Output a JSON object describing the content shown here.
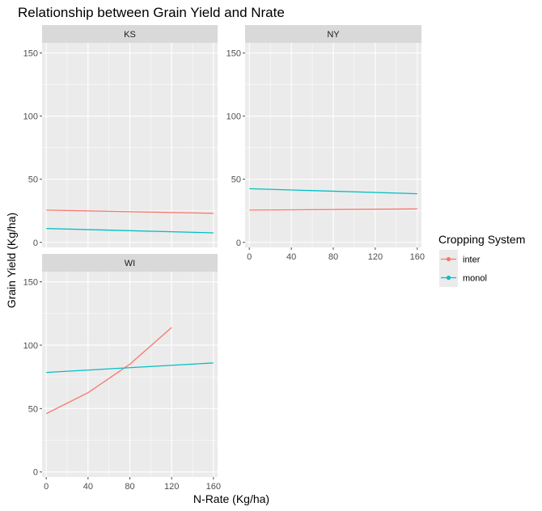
{
  "chart_data": {
    "type": "line",
    "title": "Relationship between Grain Yield and Nrate",
    "xlabel": "N-Rate (Kg/ha)",
    "ylabel": "Grain Yield (Kg/ha)",
    "xlim": [
      -4,
      164
    ],
    "ylim": [
      -4,
      158
    ],
    "x_ticks": [
      0,
      40,
      80,
      120,
      160
    ],
    "y_ticks": [
      0,
      50,
      100,
      150
    ],
    "grid": true,
    "legend": {
      "title": "Cropping System",
      "position": "right",
      "entries": [
        {
          "name": "inter",
          "color": "#F8766D"
        },
        {
          "name": "monol",
          "color": "#00BFC4"
        }
      ]
    },
    "panels": [
      {
        "label": "KS",
        "series": [
          {
            "name": "inter",
            "points": [
              [
                0,
                25.5
              ],
              [
                160,
                23
              ]
            ]
          },
          {
            "name": "monol",
            "points": [
              [
                0,
                11
              ],
              [
                160,
                7.5
              ]
            ]
          }
        ]
      },
      {
        "label": "NY",
        "series": [
          {
            "name": "inter",
            "points": [
              [
                0,
                25.5
              ],
              [
                160,
                26.5
              ]
            ]
          },
          {
            "name": "monol",
            "points": [
              [
                0,
                42.5
              ],
              [
                160,
                38.5
              ]
            ]
          }
        ]
      },
      {
        "label": "WI",
        "series": [
          {
            "name": "inter",
            "points": [
              [
                0,
                46
              ],
              [
                40,
                62.5
              ],
              [
                80,
                85
              ],
              [
                120,
                114
              ]
            ]
          },
          {
            "name": "monol",
            "points": [
              [
                0,
                78.5
              ],
              [
                160,
                86
              ]
            ]
          }
        ]
      }
    ]
  }
}
